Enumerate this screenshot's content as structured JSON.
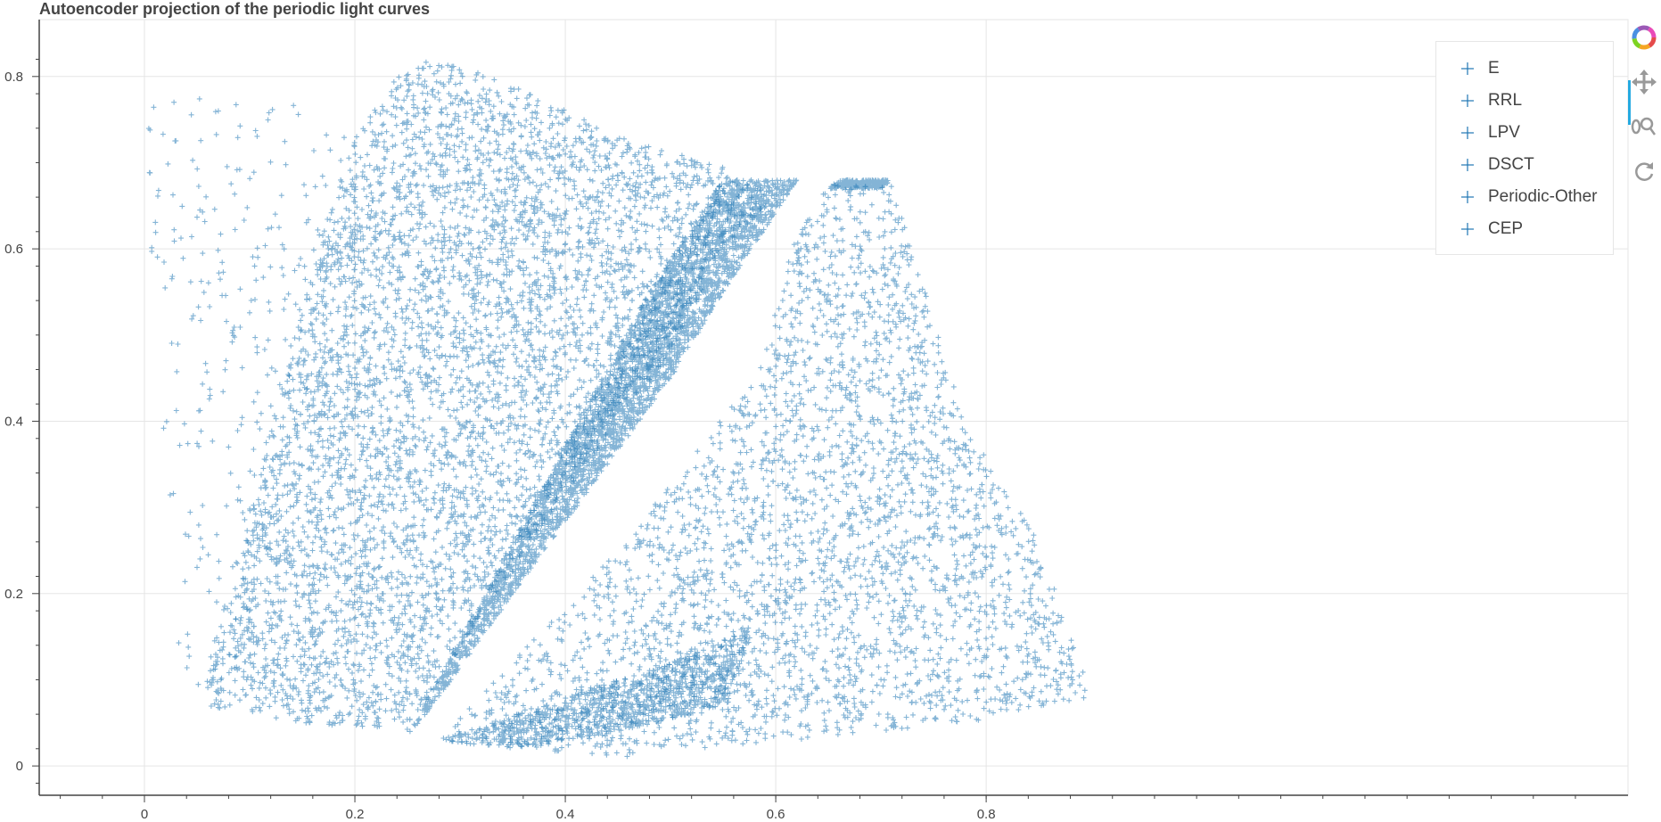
{
  "title": "Autoencoder projection of the periodic light curves",
  "legend": {
    "items": [
      {
        "label": "E"
      },
      {
        "label": "RRL"
      },
      {
        "label": "LPV"
      },
      {
        "label": "DSCT"
      },
      {
        "label": "Periodic-Other"
      },
      {
        "label": "CEP"
      }
    ]
  },
  "toolbar": {
    "tools": [
      {
        "icon": "bokeh-logo-icon"
      },
      {
        "icon": "pan-icon"
      },
      {
        "icon": "wheel-zoom-icon"
      },
      {
        "icon": "reset-icon"
      }
    ]
  },
  "colors": {
    "marker": "#1f77b4",
    "grid": "#e5e5e5",
    "axis": "#444444",
    "active_tool": "#26aae1"
  },
  "chart_data": {
    "type": "scatter",
    "title": "Autoencoder projection of the periodic light curves",
    "xlabel": "",
    "ylabel": "",
    "marker": "cross",
    "xlim": [
      -0.1,
      1.41
    ],
    "ylim": [
      -0.034,
      0.866
    ],
    "x_ticks": [
      0,
      0.2,
      0.4,
      0.6,
      0.8
    ],
    "x_tick_labels": [
      "0",
      "0.2",
      "0.4",
      "0.6",
      "0.8"
    ],
    "y_ticks": [
      0,
      0.2,
      0.4,
      0.6,
      0.8
    ],
    "y_tick_labels": [
      "0",
      "0.2",
      "0.4",
      "0.6",
      "0.8"
    ],
    "grid": true,
    "legend_position": "top-right",
    "series": [
      {
        "name": "E",
        "color": "#1f77b4",
        "shape": "polygon",
        "vertices": [
          [
            0.05,
            0.07
          ],
          [
            0.19,
            0.71
          ],
          [
            0.24,
            0.8
          ],
          [
            0.27,
            0.82
          ],
          [
            0.34,
            0.8
          ],
          [
            0.45,
            0.73
          ],
          [
            0.55,
            0.695
          ],
          [
            0.6,
            0.66
          ],
          [
            0.55,
            0.6
          ],
          [
            0.5,
            0.48
          ],
          [
            0.45,
            0.4
          ],
          [
            0.38,
            0.28
          ],
          [
            0.28,
            0.1
          ],
          [
            0.25,
            0.04
          ],
          [
            0.15,
            0.05
          ],
          [
            0.05,
            0.07
          ]
        ],
        "density": 0.55,
        "count": 5200
      },
      {
        "name": "RRL",
        "color": "#1f77b4",
        "shape": "polygon",
        "vertices": [
          [
            0.25,
            0.035
          ],
          [
            0.48,
            0.55
          ],
          [
            0.55,
            0.68
          ],
          [
            0.62,
            0.68
          ],
          [
            0.55,
            0.55
          ],
          [
            0.5,
            0.45
          ],
          [
            0.35,
            0.2
          ],
          [
            0.28,
            0.08
          ],
          [
            0.25,
            0.035
          ]
        ],
        "density": 0.75,
        "count": 3300
      },
      {
        "name": "LPV",
        "color": "#1f77b4",
        "shape": "polygon",
        "vertices": [
          [
            0,
            0.77
          ],
          [
            0.01,
            0.5
          ],
          [
            0.03,
            0.1
          ],
          [
            0.08,
            0.08
          ],
          [
            0.15,
            0.4
          ],
          [
            0.19,
            0.73
          ],
          [
            0.15,
            0.77
          ],
          [
            0.05,
            0.78
          ],
          [
            0,
            0.77
          ]
        ],
        "density": 0.1,
        "count": 260
      },
      {
        "name": "DSCT",
        "color": "#1f77b4",
        "shape": "polygon",
        "vertices": [
          [
            0.28,
            0.03
          ],
          [
            0.5,
            0.12
          ],
          [
            0.58,
            0.16
          ],
          [
            0.55,
            0.07
          ],
          [
            0.45,
            0.04
          ],
          [
            0.35,
            0.02
          ],
          [
            0.28,
            0.03
          ]
        ],
        "density": 0.5,
        "count": 1000
      },
      {
        "name": "Periodic-Other",
        "color": "#1f77b4",
        "shape": "polygon",
        "vertices": [
          [
            0.28,
            0.03
          ],
          [
            0.45,
            0.25
          ],
          [
            0.58,
            0.45
          ],
          [
            0.62,
            0.62
          ],
          [
            0.65,
            0.675
          ],
          [
            0.71,
            0.675
          ],
          [
            0.78,
            0.4
          ],
          [
            0.85,
            0.26
          ],
          [
            0.9,
            0.08
          ],
          [
            0.78,
            0.05
          ],
          [
            0.62,
            0.03
          ],
          [
            0.45,
            0.01
          ],
          [
            0.28,
            0.03
          ]
        ],
        "density": 0.18,
        "count": 3200
      },
      {
        "name": "CEP",
        "color": "#1f77b4",
        "shape": "polygon",
        "vertices": [
          [
            0.65,
            0.67
          ],
          [
            0.66,
            0.68
          ],
          [
            0.71,
            0.68
          ],
          [
            0.7,
            0.67
          ],
          [
            0.65,
            0.67
          ]
        ],
        "density": 0.9,
        "count": 250
      }
    ]
  }
}
